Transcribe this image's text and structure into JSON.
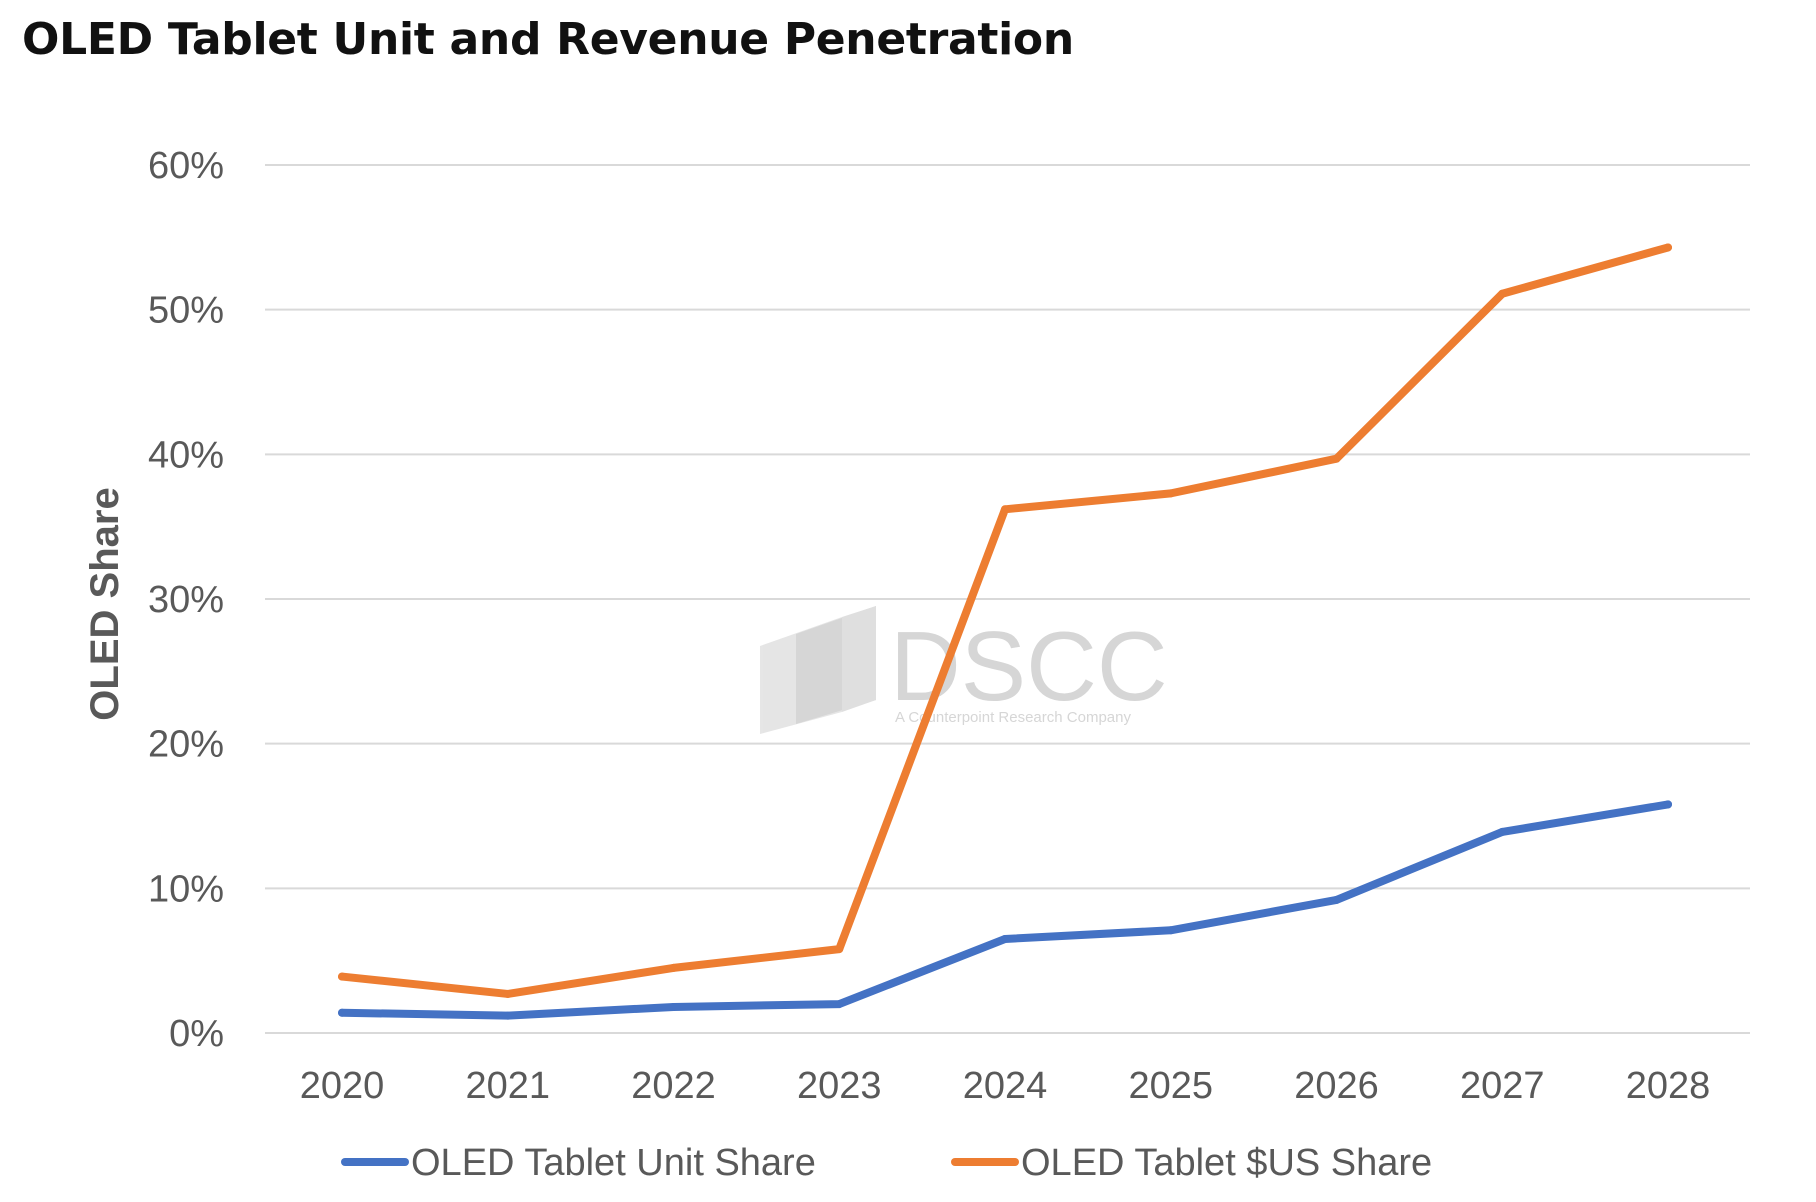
{
  "title": "OLED Tablet Unit and Revenue Penetration",
  "watermark": {
    "name": "DSCC",
    "tagline": "A Counterpoint Research Company",
    "color": "#d6d6d6"
  },
  "chart_data": {
    "type": "line",
    "title": "OLED Tablet Unit and Revenue Penetration",
    "xlabel": "",
    "ylabel": "OLED Share",
    "categories": [
      "2020",
      "2021",
      "2022",
      "2023",
      "2024",
      "2025",
      "2026",
      "2027",
      "2028"
    ],
    "y_ticks": [
      "0%",
      "10%",
      "20%",
      "30%",
      "40%",
      "50%",
      "60%"
    ],
    "ylim": [
      0,
      60
    ],
    "y_unit": "%",
    "grid": true,
    "legend_position": "bottom",
    "series": [
      {
        "name": "OLED Tablet Unit Share",
        "color": "#4472c4",
        "values": [
          1.4,
          1.2,
          1.8,
          2.0,
          6.5,
          7.1,
          9.2,
          13.9,
          15.8
        ]
      },
      {
        "name": "OLED Tablet $US Share",
        "color": "#ed7d31",
        "values": [
          3.9,
          2.7,
          4.5,
          5.8,
          36.2,
          37.3,
          39.7,
          51.1,
          54.3
        ]
      }
    ]
  }
}
